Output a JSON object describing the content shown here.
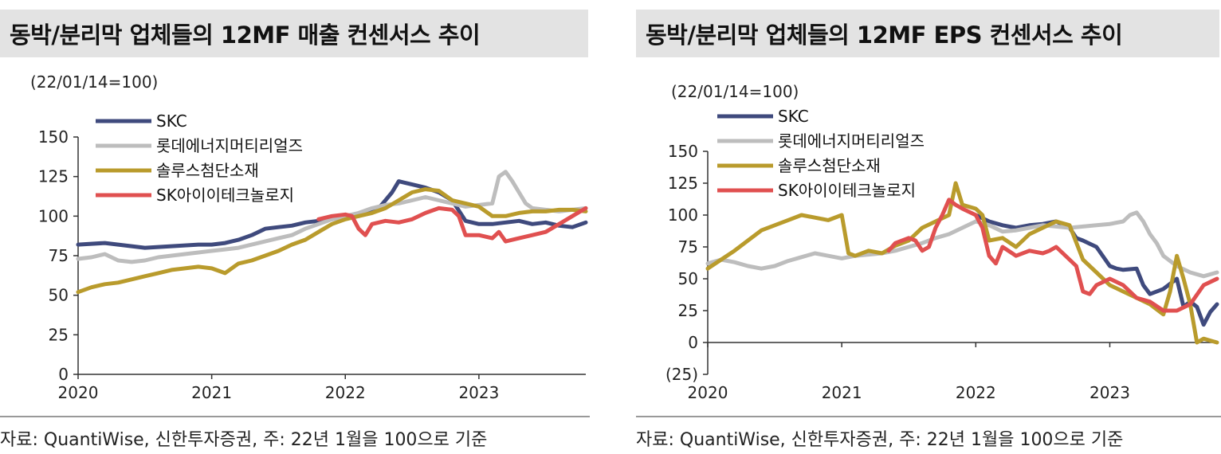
{
  "charts": [
    {
      "title": "동박/분리막 업체들의 12MF 매출 컨센서스 추이",
      "unit": "(22/01/14=100)",
      "source": "자료: QuantiWise, 신한투자증권, 주: 22년 1월을 100으로 기준"
    },
    {
      "title": "동박/분리막 업체들의 12MF EPS 컨센서스 추이",
      "unit": "(22/01/14=100)",
      "source": "자료: QuantiWise, 신한투자증권, 주: 22년 1월을 100으로 기준"
    }
  ],
  "chart_data": [
    {
      "type": "line",
      "title": "동박/분리막 업체들의 12MF 매출 컨센서스 추이",
      "ylim": [
        0,
        150
      ],
      "yticks": [
        "0",
        "25",
        "50",
        "75",
        "100",
        "125",
        "150"
      ],
      "xlim": [
        2020.0,
        2023.8
      ],
      "xticks": [
        "2020",
        "2021",
        "2022",
        "2023"
      ],
      "series": [
        {
          "name": "SKC",
          "color": "#3f4a7d",
          "x": [
            2020.0,
            2020.2,
            2020.4,
            2020.5,
            2020.7,
            2020.9,
            2021.0,
            2021.1,
            2021.2,
            2021.3,
            2021.4,
            2021.5,
            2021.6,
            2021.7,
            2021.8,
            2021.9,
            2022.0,
            2022.1,
            2022.2,
            2022.25,
            2022.3,
            2022.35,
            2022.4,
            2022.5,
            2022.6,
            2022.7,
            2022.8,
            2022.9,
            2023.0,
            2023.1,
            2023.2,
            2023.3,
            2023.4,
            2023.5,
            2023.6,
            2023.7,
            2023.8
          ],
          "y": [
            82,
            83,
            81,
            80,
            81,
            82,
            82,
            83,
            85,
            88,
            92,
            93,
            94,
            96,
            97,
            98,
            100,
            100,
            103,
            105,
            110,
            115,
            122,
            120,
            118,
            115,
            110,
            97,
            95,
            95,
            96,
            97,
            95,
            96,
            94,
            93,
            96
          ]
        },
        {
          "name": "롯데에너지머티리얼즈",
          "color": "#bdbdbd",
          "x": [
            2020.0,
            2020.1,
            2020.2,
            2020.3,
            2020.4,
            2020.5,
            2020.6,
            2020.7,
            2020.8,
            2020.9,
            2021.0,
            2021.1,
            2021.2,
            2021.3,
            2021.4,
            2021.5,
            2021.6,
            2021.7,
            2021.8,
            2021.9,
            2022.0,
            2022.1,
            2022.2,
            2022.3,
            2022.4,
            2022.5,
            2022.6,
            2022.7,
            2022.8,
            2022.9,
            2023.0,
            2023.1,
            2023.15,
            2023.2,
            2023.25,
            2023.3,
            2023.35,
            2023.4,
            2023.5,
            2023.6,
            2023.7,
            2023.8
          ],
          "y": [
            73,
            74,
            76,
            72,
            71,
            72,
            74,
            75,
            76,
            77,
            78,
            79,
            80,
            82,
            84,
            86,
            88,
            92,
            95,
            98,
            100,
            102,
            105,
            107,
            108,
            110,
            112,
            110,
            108,
            106,
            107,
            108,
            125,
            128,
            122,
            115,
            108,
            105,
            104,
            103,
            104,
            105
          ]
        },
        {
          "name": "솔루스첨단소재",
          "color": "#b99b2c",
          "x": [
            2020.0,
            2020.1,
            2020.2,
            2020.3,
            2020.4,
            2020.5,
            2020.6,
            2020.7,
            2020.8,
            2020.9,
            2021.0,
            2021.1,
            2021.2,
            2021.3,
            2021.4,
            2021.5,
            2021.6,
            2021.7,
            2021.8,
            2021.9,
            2022.0,
            2022.1,
            2022.2,
            2022.3,
            2022.4,
            2022.5,
            2022.6,
            2022.7,
            2022.8,
            2022.9,
            2023.0,
            2023.1,
            2023.2,
            2023.3,
            2023.4,
            2023.5,
            2023.6,
            2023.7,
            2023.8
          ],
          "y": [
            52,
            55,
            57,
            58,
            60,
            62,
            64,
            66,
            67,
            68,
            67,
            64,
            70,
            72,
            75,
            78,
            82,
            85,
            90,
            95,
            98,
            100,
            102,
            105,
            110,
            115,
            117,
            116,
            110,
            108,
            106,
            100,
            100,
            102,
            103,
            103,
            104,
            104,
            103
          ]
        },
        {
          "name": "SK아이이테크놀로지",
          "color": "#e05050",
          "x": [
            2021.8,
            2021.9,
            2022.0,
            2022.05,
            2022.1,
            2022.15,
            2022.2,
            2022.3,
            2022.4,
            2022.5,
            2022.6,
            2022.7,
            2022.8,
            2022.85,
            2022.9,
            2023.0,
            2023.1,
            2023.15,
            2023.2,
            2023.3,
            2023.4,
            2023.5,
            2023.6,
            2023.7,
            2023.8
          ],
          "y": [
            98,
            100,
            101,
            100,
            92,
            88,
            95,
            97,
            96,
            98,
            102,
            105,
            104,
            100,
            88,
            88,
            86,
            90,
            84,
            86,
            88,
            90,
            95,
            100,
            105
          ]
        }
      ]
    },
    {
      "type": "line",
      "title": "동박/분리막 업체들의 12MF EPS 컨센서스 추이",
      "ylim": [
        -25,
        150
      ],
      "yticks": [
        "(25)",
        "0",
        "25",
        "50",
        "75",
        "100",
        "125",
        "150"
      ],
      "xlim": [
        2020.0,
        2023.8
      ],
      "xticks": [
        "2020",
        "2021",
        "2022",
        "2023"
      ],
      "series": [
        {
          "name": "SKC",
          "color": "#3f4a7d",
          "x": [
            2022.0,
            2022.1,
            2022.2,
            2022.3,
            2022.4,
            2022.5,
            2022.6,
            2022.7,
            2022.75,
            2022.8,
            2022.9,
            2023.0,
            2023.05,
            2023.1,
            2023.2,
            2023.25,
            2023.3,
            2023.4,
            2023.45,
            2023.5,
            2023.55,
            2023.6,
            2023.65,
            2023.7,
            2023.75,
            2023.8
          ],
          "y": [
            100,
            95,
            92,
            90,
            92,
            93,
            95,
            90,
            82,
            80,
            75,
            60,
            58,
            57,
            58,
            45,
            38,
            42,
            46,
            50,
            28,
            32,
            28,
            14,
            24,
            30
          ]
        },
        {
          "name": "롯데에너지머티리얼즈",
          "color": "#bdbdbd",
          "x": [
            2020.0,
            2020.1,
            2020.2,
            2020.3,
            2020.4,
            2020.5,
            2020.6,
            2020.7,
            2020.8,
            2020.9,
            2021.0,
            2021.1,
            2021.2,
            2021.3,
            2021.4,
            2021.5,
            2021.6,
            2021.7,
            2021.8,
            2021.9,
            2022.0,
            2022.1,
            2022.2,
            2022.3,
            2022.4,
            2022.5,
            2022.6,
            2022.7,
            2022.8,
            2022.9,
            2023.0,
            2023.1,
            2023.15,
            2023.2,
            2023.25,
            2023.3,
            2023.35,
            2023.4,
            2023.5,
            2023.6,
            2023.7,
            2023.8
          ],
          "y": [
            62,
            65,
            63,
            60,
            58,
            60,
            64,
            67,
            70,
            68,
            66,
            68,
            69,
            70,
            72,
            75,
            78,
            82,
            85,
            90,
            95,
            92,
            87,
            88,
            90,
            92,
            91,
            90,
            91,
            92,
            93,
            95,
            100,
            102,
            95,
            85,
            78,
            68,
            60,
            55,
            52,
            55
          ]
        },
        {
          "name": "솔루스첨단소재",
          "color": "#b99b2c",
          "x": [
            2020.0,
            2020.1,
            2020.2,
            2020.3,
            2020.4,
            2020.5,
            2020.6,
            2020.7,
            2020.8,
            2020.9,
            2021.0,
            2021.05,
            2021.1,
            2021.2,
            2021.3,
            2021.4,
            2021.5,
            2021.6,
            2021.7,
            2021.8,
            2021.85,
            2021.9,
            2022.0,
            2022.05,
            2022.1,
            2022.2,
            2022.3,
            2022.4,
            2022.5,
            2022.6,
            2022.7,
            2022.8,
            2022.9,
            2023.0,
            2023.1,
            2023.2,
            2023.3,
            2023.4,
            2023.45,
            2023.5,
            2023.55,
            2023.6,
            2023.65,
            2023.7,
            2023.8
          ],
          "y": [
            58,
            65,
            72,
            80,
            88,
            92,
            96,
            100,
            98,
            96,
            100,
            70,
            68,
            72,
            70,
            76,
            80,
            90,
            95,
            100,
            125,
            108,
            105,
            100,
            80,
            82,
            75,
            85,
            90,
            95,
            92,
            65,
            55,
            45,
            40,
            35,
            30,
            22,
            40,
            68,
            50,
            30,
            0,
            3,
            0
          ]
        },
        {
          "name": "SK아이이테크놀로지",
          "color": "#e05050",
          "x": [
            2021.35,
            2021.4,
            2021.5,
            2021.55,
            2021.6,
            2021.65,
            2021.7,
            2021.75,
            2021.8,
            2021.85,
            2021.9,
            2022.0,
            2022.05,
            2022.1,
            2022.15,
            2022.2,
            2022.3,
            2022.4,
            2022.5,
            2022.55,
            2022.6,
            2022.7,
            2022.75,
            2022.8,
            2022.85,
            2022.9,
            2023.0,
            2023.1,
            2023.2,
            2023.3,
            2023.4,
            2023.5,
            2023.6,
            2023.7,
            2023.8
          ],
          "y": [
            72,
            78,
            82,
            80,
            72,
            75,
            90,
            100,
            112,
            108,
            105,
            100,
            90,
            68,
            62,
            75,
            68,
            72,
            70,
            72,
            75,
            65,
            60,
            40,
            38,
            45,
            50,
            45,
            35,
            32,
            25,
            25,
            30,
            45,
            50
          ]
        }
      ]
    }
  ]
}
